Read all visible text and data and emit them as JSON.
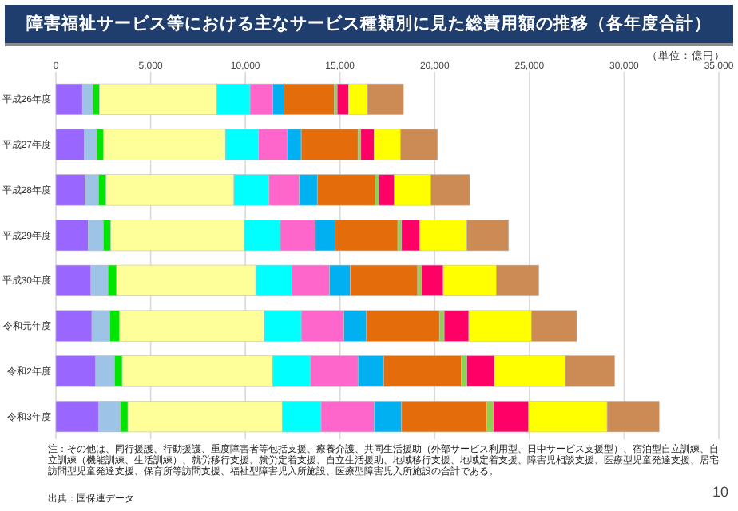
{
  "chart_data": {
    "type": "bar",
    "orientation": "horizontal",
    "stacked": true,
    "title": "障害福祉サービス等における主なサービス種類別に見た総費用額の推移（各年度合計）",
    "categories": [
      "平成26年度",
      "平成27年度",
      "平成28年度",
      "平成29年度",
      "平成30年度",
      "令和元年度",
      "令和2年度",
      "令和3年度"
    ],
    "series": [
      {
        "color": "#9966ff",
        "values": [
          1400,
          1500,
          1550,
          1700,
          1850,
          1900,
          2100,
          2250
        ]
      },
      {
        "color": "#9dc3e6",
        "values": [
          550,
          650,
          700,
          800,
          900,
          950,
          1000,
          1150
        ]
      },
      {
        "color": "#00e600",
        "values": [
          350,
          350,
          400,
          400,
          450,
          500,
          400,
          400
        ]
      },
      {
        "color": "#ffff99",
        "values": [
          6200,
          6450,
          6750,
          7050,
          7350,
          7650,
          7950,
          8150
        ]
      },
      {
        "color": "#00ffff",
        "values": [
          1750,
          1750,
          1850,
          1900,
          1900,
          1950,
          2000,
          2050
        ]
      },
      {
        "color": "#ff66cc",
        "values": [
          1200,
          1500,
          1600,
          1850,
          2000,
          2250,
          2500,
          2800
        ]
      },
      {
        "color": "#00b0f0",
        "values": [
          600,
          750,
          950,
          1050,
          1100,
          1200,
          1350,
          1450
        ]
      },
      {
        "color": "#e46c0a",
        "values": [
          2650,
          3000,
          3050,
          3300,
          3550,
          3850,
          4100,
          4500
        ]
      },
      {
        "color": "#92d050",
        "values": [
          150,
          150,
          200,
          200,
          200,
          250,
          300,
          350
        ]
      },
      {
        "color": "#ff0066",
        "values": [
          600,
          700,
          800,
          950,
          1150,
          1300,
          1450,
          1850
        ]
      },
      {
        "color": "#ffff00",
        "values": [
          1000,
          1400,
          1950,
          2500,
          2800,
          3300,
          3750,
          4150
        ]
      },
      {
        "color": "#cc8a55",
        "values": [
          1900,
          1950,
          2050,
          2200,
          2250,
          2400,
          2600,
          2750
        ]
      }
    ],
    "xlim": [
      0,
      35000
    ],
    "xticks": [
      {
        "value": 0,
        "label": "0"
      },
      {
        "value": 5000,
        "label": "5,000"
      },
      {
        "value": 10000,
        "label": "10,000"
      },
      {
        "value": 15000,
        "label": "15,000"
      },
      {
        "value": 20000,
        "label": "20,000"
      },
      {
        "value": 25000,
        "label": "25,000"
      },
      {
        "value": 30000,
        "label": "30,000"
      },
      {
        "value": 35000,
        "label": "35,000"
      }
    ],
    "grid": "x",
    "annotations": [
      "（単位：億円）",
      "注：その他は、同行援護、行動援護、重度障害者等包括支援、療養介護、共同生活援助（外部サービス利用型、日中サービス支援型）、宿泊型自立訓練、自立訓練（機能訓練、生活訓練）、就労移行支援、就労定着支援、自立生活援助、地域移行支援、地域定着支援、障害児相談支援、医療型児童発達支援、居宅訪問型児童発達支援、保育所等訪問支援、福祉型障害児入所施設、医療型障害児入所施設の合計である。",
      "出典：国保連データ",
      "10"
    ]
  }
}
